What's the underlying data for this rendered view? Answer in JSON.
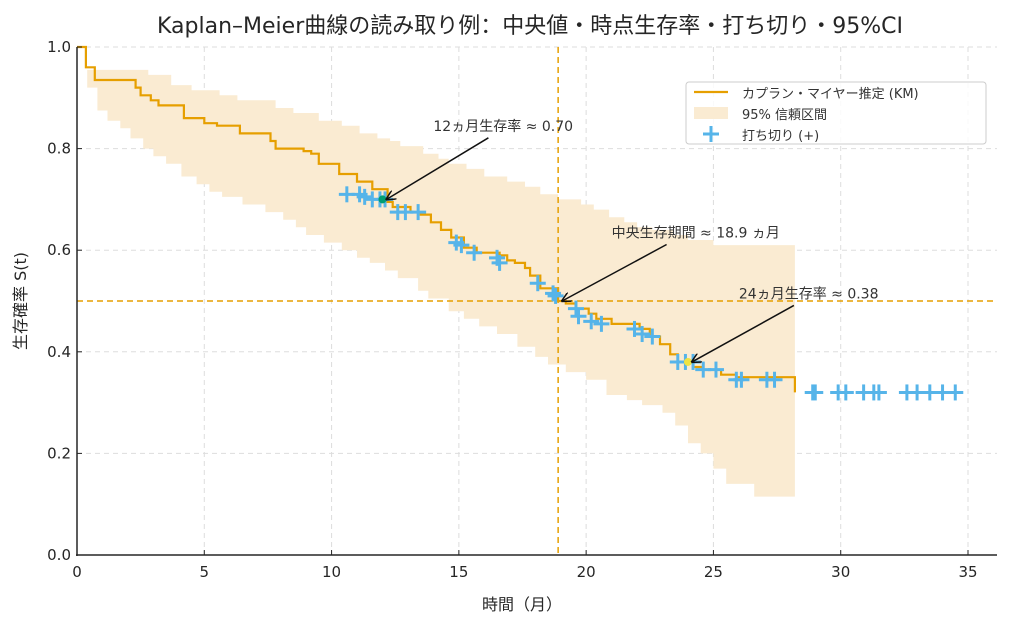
{
  "chart_data": {
    "type": "line",
    "title": "Kaplan–Meier曲線の読み取り例：中央値・時点生存率・打ち切り・95%CI",
    "xlabel": "時間（月）",
    "ylabel": "生存確率 S(t)",
    "xlim": [
      0,
      36
    ],
    "ylim": [
      0,
      1.0
    ],
    "xticks": [
      0,
      5,
      10,
      15,
      20,
      25,
      30,
      35
    ],
    "yticks": [
      0.0,
      0.2,
      0.4,
      0.6,
      0.8,
      1.0
    ],
    "xtick_labels": [
      "0",
      "5",
      "10",
      "15",
      "20",
      "25",
      "30",
      "35"
    ],
    "ytick_labels": [
      "0.0",
      "0.2",
      "0.4",
      "0.6",
      "0.8",
      "1.0"
    ],
    "grid": true,
    "legend_position": "top-right",
    "colors": {
      "km": "#E69F00",
      "ci": "#FAEBD2",
      "censor": "#56B4E9",
      "ref_line": "#E69F00",
      "arrow": "#111111"
    },
    "legend": [
      {
        "label": "カプラン・マイヤー推定 (KM)",
        "kind": "line"
      },
      {
        "label": "95% 信頼区間",
        "kind": "patch"
      },
      {
        "label": "打ち切り (+)",
        "kind": "marker"
      }
    ],
    "series": [
      {
        "name": "カプラン・マイヤー推定 (KM)",
        "type": "step",
        "points": [
          [
            0,
            1.0
          ],
          [
            0.35,
            0.96
          ],
          [
            0.7,
            0.935
          ],
          [
            1.9,
            0.935
          ],
          [
            2.3,
            0.92
          ],
          [
            2.5,
            0.905
          ],
          [
            2.9,
            0.895
          ],
          [
            3.2,
            0.885
          ],
          [
            3.8,
            0.885
          ],
          [
            4.2,
            0.86
          ],
          [
            5.0,
            0.85
          ],
          [
            5.5,
            0.845
          ],
          [
            6.4,
            0.83
          ],
          [
            7.3,
            0.83
          ],
          [
            7.6,
            0.815
          ],
          [
            7.8,
            0.8
          ],
          [
            8.6,
            0.8
          ],
          [
            8.9,
            0.795
          ],
          [
            9.2,
            0.79
          ],
          [
            9.5,
            0.77
          ],
          [
            10.2,
            0.77
          ],
          [
            10.3,
            0.75
          ],
          [
            11.0,
            0.735
          ],
          [
            11.4,
            0.735
          ],
          [
            11.6,
            0.72
          ],
          [
            12.2,
            0.695
          ],
          [
            12.4,
            0.685
          ],
          [
            13.1,
            0.675
          ],
          [
            13.5,
            0.67
          ],
          [
            13.9,
            0.655
          ],
          [
            14.3,
            0.64
          ],
          [
            14.7,
            0.625
          ],
          [
            15.2,
            0.605
          ],
          [
            15.7,
            0.595
          ],
          [
            16.6,
            0.59
          ],
          [
            16.9,
            0.58
          ],
          [
            17.2,
            0.575
          ],
          [
            17.6,
            0.565
          ],
          [
            17.8,
            0.55
          ],
          [
            18.2,
            0.525
          ],
          [
            18.9,
            0.5
          ],
          [
            19.2,
            0.495
          ],
          [
            19.6,
            0.485
          ],
          [
            20.1,
            0.475
          ],
          [
            20.4,
            0.465
          ],
          [
            21.0,
            0.455
          ],
          [
            22.1,
            0.445
          ],
          [
            22.5,
            0.43
          ],
          [
            22.9,
            0.415
          ],
          [
            23.3,
            0.395
          ],
          [
            23.6,
            0.38
          ],
          [
            24.2,
            0.37
          ],
          [
            24.6,
            0.365
          ],
          [
            25.3,
            0.355
          ],
          [
            25.9,
            0.35
          ],
          [
            27.8,
            0.35
          ],
          [
            28.2,
            0.32
          ]
        ]
      },
      {
        "name": "95% 信頼区間",
        "type": "band",
        "upper": [
          [
            0,
            1.0
          ],
          [
            0.4,
            0.955
          ],
          [
            1.3,
            0.955
          ],
          [
            2.0,
            0.955
          ],
          [
            2.8,
            0.945
          ],
          [
            3.7,
            0.925
          ],
          [
            4.5,
            0.915
          ],
          [
            5.6,
            0.905
          ],
          [
            6.3,
            0.895
          ],
          [
            7.8,
            0.88
          ],
          [
            8.5,
            0.87
          ],
          [
            9.5,
            0.855
          ],
          [
            10.4,
            0.845
          ],
          [
            11.1,
            0.83
          ],
          [
            11.8,
            0.82
          ],
          [
            12.3,
            0.815
          ],
          [
            12.7,
            0.805
          ],
          [
            13.6,
            0.79
          ],
          [
            14.2,
            0.78
          ],
          [
            14.6,
            0.77
          ],
          [
            15.3,
            0.76
          ],
          [
            16.0,
            0.745
          ],
          [
            16.9,
            0.735
          ],
          [
            17.6,
            0.725
          ],
          [
            18.2,
            0.71
          ],
          [
            18.9,
            0.7
          ],
          [
            19.8,
            0.69
          ],
          [
            20.3,
            0.68
          ],
          [
            20.9,
            0.665
          ],
          [
            21.5,
            0.655
          ],
          [
            22.0,
            0.645
          ],
          [
            22.6,
            0.64
          ],
          [
            23.4,
            0.63
          ],
          [
            24.0,
            0.62
          ],
          [
            25.0,
            0.61
          ],
          [
            28.2,
            0.61
          ]
        ],
        "lower": [
          [
            0,
            1.0
          ],
          [
            0.4,
            0.92
          ],
          [
            0.8,
            0.875
          ],
          [
            1.2,
            0.855
          ],
          [
            1.7,
            0.84
          ],
          [
            2.1,
            0.82
          ],
          [
            2.6,
            0.8
          ],
          [
            3.0,
            0.785
          ],
          [
            3.5,
            0.77
          ],
          [
            4.1,
            0.745
          ],
          [
            4.7,
            0.73
          ],
          [
            5.2,
            0.715
          ],
          [
            5.7,
            0.705
          ],
          [
            6.5,
            0.69
          ],
          [
            7.4,
            0.675
          ],
          [
            8.1,
            0.66
          ],
          [
            8.6,
            0.645
          ],
          [
            9.0,
            0.63
          ],
          [
            9.7,
            0.615
          ],
          [
            10.4,
            0.6
          ],
          [
            11.0,
            0.585
          ],
          [
            11.5,
            0.575
          ],
          [
            12.1,
            0.56
          ],
          [
            12.6,
            0.545
          ],
          [
            13.4,
            0.52
          ],
          [
            13.8,
            0.505
          ],
          [
            14.6,
            0.48
          ],
          [
            15.2,
            0.465
          ],
          [
            15.8,
            0.45
          ],
          [
            16.5,
            0.435
          ],
          [
            17.3,
            0.41
          ],
          [
            18.0,
            0.39
          ],
          [
            18.5,
            0.375
          ],
          [
            19.2,
            0.36
          ],
          [
            20.0,
            0.345
          ],
          [
            20.8,
            0.315
          ],
          [
            21.6,
            0.305
          ],
          [
            22.2,
            0.295
          ],
          [
            23.0,
            0.28
          ],
          [
            23.5,
            0.255
          ],
          [
            24.0,
            0.22
          ],
          [
            24.5,
            0.2
          ],
          [
            25.0,
            0.17
          ],
          [
            25.5,
            0.14
          ],
          [
            26.6,
            0.115
          ],
          [
            28.2,
            0.105
          ]
        ]
      },
      {
        "name": "打ち切り (+)",
        "type": "scatter",
        "points": [
          [
            10.6,
            0.71
          ],
          [
            11.1,
            0.71
          ],
          [
            11.3,
            0.705
          ],
          [
            11.6,
            0.7
          ],
          [
            11.9,
            0.7
          ],
          [
            12.1,
            0.7
          ],
          [
            12.6,
            0.675
          ],
          [
            12.9,
            0.675
          ],
          [
            13.4,
            0.675
          ],
          [
            14.9,
            0.615
          ],
          [
            15.1,
            0.61
          ],
          [
            15.6,
            0.595
          ],
          [
            16.5,
            0.585
          ],
          [
            16.6,
            0.575
          ],
          [
            18.1,
            0.535
          ],
          [
            18.7,
            0.515
          ],
          [
            18.8,
            0.51
          ],
          [
            19.6,
            0.485
          ],
          [
            19.7,
            0.47
          ],
          [
            20.2,
            0.46
          ],
          [
            20.6,
            0.455
          ],
          [
            21.9,
            0.445
          ],
          [
            22.2,
            0.435
          ],
          [
            22.6,
            0.43
          ],
          [
            23.6,
            0.38
          ],
          [
            23.9,
            0.38
          ],
          [
            24.2,
            0.38
          ],
          [
            24.6,
            0.365
          ],
          [
            25.1,
            0.365
          ],
          [
            25.9,
            0.345
          ],
          [
            26.1,
            0.345
          ],
          [
            27.1,
            0.345
          ],
          [
            27.4,
            0.345
          ],
          [
            28.9,
            0.32
          ],
          [
            29.0,
            0.32
          ],
          [
            29.9,
            0.32
          ],
          [
            30.2,
            0.32
          ],
          [
            30.9,
            0.32
          ],
          [
            31.3,
            0.32
          ],
          [
            31.5,
            0.32
          ],
          [
            32.6,
            0.32
          ],
          [
            33.0,
            0.32
          ],
          [
            33.5,
            0.32
          ],
          [
            34.0,
            0.32
          ],
          [
            34.5,
            0.32
          ]
        ]
      }
    ],
    "reference_lines": [
      {
        "orientation": "horizontal",
        "value": 0.5,
        "style": "dashed"
      },
      {
        "orientation": "vertical",
        "value": 18.9,
        "style": "dashed"
      }
    ],
    "highlight_points": [
      {
        "x": 12,
        "y": 0.7,
        "color": "#009E73"
      },
      {
        "x": 24,
        "y": 0.38,
        "color": "#F0E442"
      }
    ],
    "annotations": [
      {
        "text": "12ヵ月生存率 ≈ 0.70",
        "point": [
          12,
          0.7
        ],
        "text_pos": [
          14.0,
          0.835
        ]
      },
      {
        "text": "中央生存期間 ≈ 18.9 ヵ月",
        "point": [
          18.9,
          0.5
        ],
        "text_pos": [
          21.0,
          0.625
        ]
      },
      {
        "text": "24ヵ月生存率 ≈ 0.38",
        "point": [
          24,
          0.38
        ],
        "text_pos": [
          26.0,
          0.505
        ]
      }
    ]
  }
}
